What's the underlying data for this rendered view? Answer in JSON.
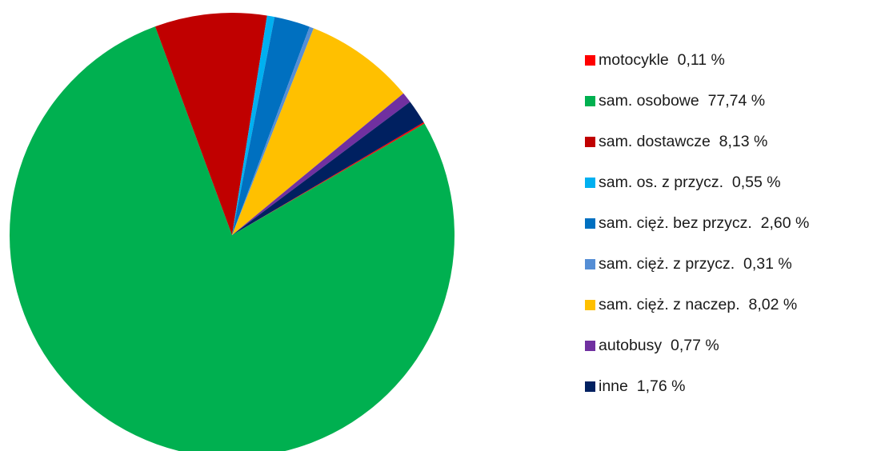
{
  "chart_data": {
    "type": "pie",
    "title": "",
    "start_angle_deg": 59.5,
    "direction": "clockwise",
    "legend_position": "right",
    "slices": [
      {
        "label": "motocykle",
        "value": 0.11,
        "display": "0,11 %",
        "color": "#ff0000"
      },
      {
        "label": "sam. osobowe",
        "value": 77.74,
        "display": "77,74 %",
        "color": "#00b050"
      },
      {
        "label": "sam. dostawcze",
        "value": 8.13,
        "display": "8,13 %",
        "color": "#c00000"
      },
      {
        "label": "sam. os. z przycz.",
        "value": 0.55,
        "display": "0,55 %",
        "color": "#00b0f0"
      },
      {
        "label": "sam. cięż. bez przycz.",
        "value": 2.6,
        "display": "2,60 %",
        "color": "#0070c0"
      },
      {
        "label": "sam. cięż. z przycz.",
        "value": 0.31,
        "display": "0,31 %",
        "color": "#558ed5"
      },
      {
        "label": "sam. cięż. z naczep.",
        "value": 8.02,
        "display": "8,02 %",
        "color": "#ffc000"
      },
      {
        "label": "autobusy",
        "value": 0.77,
        "display": "0,77 %",
        "color": "#7030a0"
      },
      {
        "label": "inne",
        "value": 1.76,
        "display": "1,76 %",
        "color": "#002060"
      }
    ]
  }
}
